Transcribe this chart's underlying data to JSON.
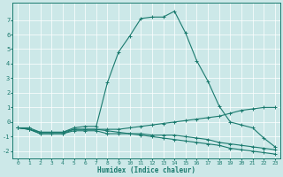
{
  "xlabel": "Humidex (Indice chaleur)",
  "ylabel": "",
  "bg_color": "#cce8e8",
  "line_color": "#1a7a6e",
  "grid_color": "#ffffff",
  "xlim": [
    -0.5,
    23.5
  ],
  "ylim": [
    -2.5,
    8.2
  ],
  "yticks": [
    -2,
    -1,
    0,
    1,
    2,
    3,
    4,
    5,
    6,
    7
  ],
  "xticks": [
    0,
    1,
    2,
    3,
    4,
    5,
    6,
    7,
    8,
    9,
    10,
    11,
    12,
    13,
    14,
    15,
    16,
    17,
    18,
    19,
    20,
    21,
    22,
    23
  ],
  "series": [
    {
      "x": [
        0,
        1,
        2,
        3,
        4,
        5,
        6,
        7,
        8,
        9,
        10,
        11,
        12,
        13,
        14,
        15,
        16,
        17,
        18,
        19,
        20,
        21,
        22,
        23
      ],
      "y": [
        -0.4,
        -0.4,
        -0.7,
        -0.7,
        -0.7,
        -0.4,
        -0.3,
        -0.3,
        2.7,
        4.8,
        5.9,
        7.1,
        7.2,
        7.2,
        7.6,
        6.1,
        4.2,
        2.8,
        1.1,
        0.0,
        -0.2,
        -0.4,
        -1.1,
        -1.7
      ]
    },
    {
      "x": [
        0,
        1,
        2,
        3,
        4,
        5,
        6,
        7,
        8,
        9,
        10,
        11,
        12,
        13,
        14,
        15,
        16,
        17,
        18,
        19,
        20,
        21,
        22,
        23
      ],
      "y": [
        -0.4,
        -0.5,
        -0.8,
        -0.8,
        -0.8,
        -0.5,
        -0.5,
        -0.5,
        -0.5,
        -0.5,
        -0.4,
        -0.3,
        -0.2,
        -0.1,
        0.0,
        0.1,
        0.2,
        0.3,
        0.4,
        0.6,
        0.8,
        0.9,
        1.0,
        1.0
      ]
    },
    {
      "x": [
        0,
        1,
        2,
        3,
        4,
        5,
        6,
        7,
        8,
        9,
        10,
        11,
        12,
        13,
        14,
        15,
        16,
        17,
        18,
        19,
        20,
        21,
        22,
        23
      ],
      "y": [
        -0.4,
        -0.5,
        -0.8,
        -0.8,
        -0.8,
        -0.6,
        -0.6,
        -0.6,
        -0.8,
        -0.8,
        -0.8,
        -0.8,
        -0.9,
        -0.9,
        -0.9,
        -1.0,
        -1.1,
        -1.2,
        -1.4,
        -1.5,
        -1.6,
        -1.7,
        -1.8,
        -1.9
      ]
    },
    {
      "x": [
        0,
        1,
        2,
        3,
        4,
        5,
        6,
        7,
        8,
        9,
        10,
        11,
        12,
        13,
        14,
        15,
        16,
        17,
        18,
        19,
        20,
        21,
        22,
        23
      ],
      "y": [
        -0.4,
        -0.5,
        -0.7,
        -0.7,
        -0.7,
        -0.5,
        -0.5,
        -0.5,
        -0.6,
        -0.7,
        -0.8,
        -0.9,
        -1.0,
        -1.1,
        -1.2,
        -1.3,
        -1.4,
        -1.5,
        -1.6,
        -1.8,
        -1.9,
        -2.0,
        -2.1,
        -2.2
      ]
    }
  ]
}
